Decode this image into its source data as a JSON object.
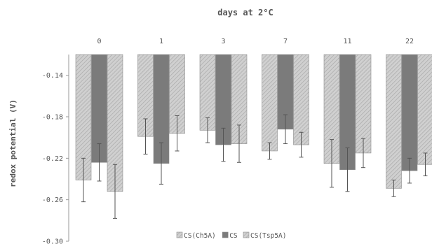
{
  "chart_data": {
    "type": "bar",
    "title": "days at 2°C",
    "xlabel": "days at 2°C",
    "ylabel": "redox potential (V)",
    "categories": [
      "0",
      "1",
      "3",
      "7",
      "11",
      "22"
    ],
    "ylim": [
      -0.3,
      -0.12
    ],
    "yticks": [
      "-0.14",
      "-0.18",
      "-0.22",
      "-0.26",
      "-0.30"
    ],
    "ytick_values": [
      -0.14,
      -0.18,
      -0.22,
      -0.26,
      -0.3
    ],
    "x_axis_position": "top",
    "grid": false,
    "legend_position": "bottom-center",
    "series": [
      {
        "name": "CS(Ch5A)",
        "values": [
          -0.241,
          -0.199,
          -0.193,
          -0.213,
          -0.225,
          -0.249
        ],
        "errors": [
          0.021,
          0.017,
          0.012,
          0.008,
          0.023,
          0.008
        ],
        "color": "#c8c8c8",
        "pattern": "hatched"
      },
      {
        "name": "CS",
        "values": [
          -0.224,
          -0.225,
          -0.207,
          -0.192,
          -0.231,
          -0.232
        ],
        "errors": [
          0.018,
          0.02,
          0.016,
          0.014,
          0.021,
          0.012
        ],
        "color": "#7b7b7b",
        "pattern": "solid"
      },
      {
        "name": "CS(Tsp5A)",
        "values": [
          -0.252,
          -0.196,
          -0.206,
          -0.207,
          -0.215,
          -0.226
        ],
        "errors": [
          0.026,
          0.017,
          0.018,
          0.012,
          0.014,
          0.011
        ],
        "color": "#c8c8c8",
        "pattern": "hatched"
      }
    ]
  }
}
